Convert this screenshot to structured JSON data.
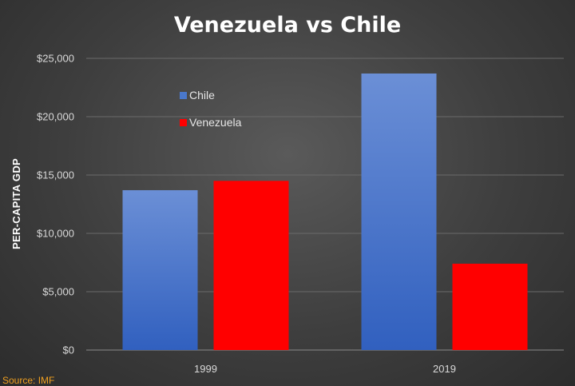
{
  "chart_data": {
    "type": "bar",
    "title": "Venezuela vs Chile",
    "xlabel": "",
    "ylabel": "PER-CAPITA GDP",
    "categories": [
      "1999",
      "2019"
    ],
    "series": [
      {
        "name": "Chile",
        "values": [
          13700,
          23700
        ],
        "color": "#4a78cc"
      },
      {
        "name": "Venezuela",
        "values": [
          14500,
          7400
        ],
        "color": "#ff0000"
      }
    ],
    "ylim": [
      0,
      25000
    ],
    "yticks": [
      0,
      5000,
      10000,
      15000,
      20000,
      25000
    ],
    "ytick_labels": [
      "$0",
      "$5,000",
      "$10,000",
      "$15,000",
      "$20,000",
      "$25,000"
    ],
    "grid": true,
    "legend_position": "upper-left inside plot"
  },
  "source_note": "Source: IMF"
}
